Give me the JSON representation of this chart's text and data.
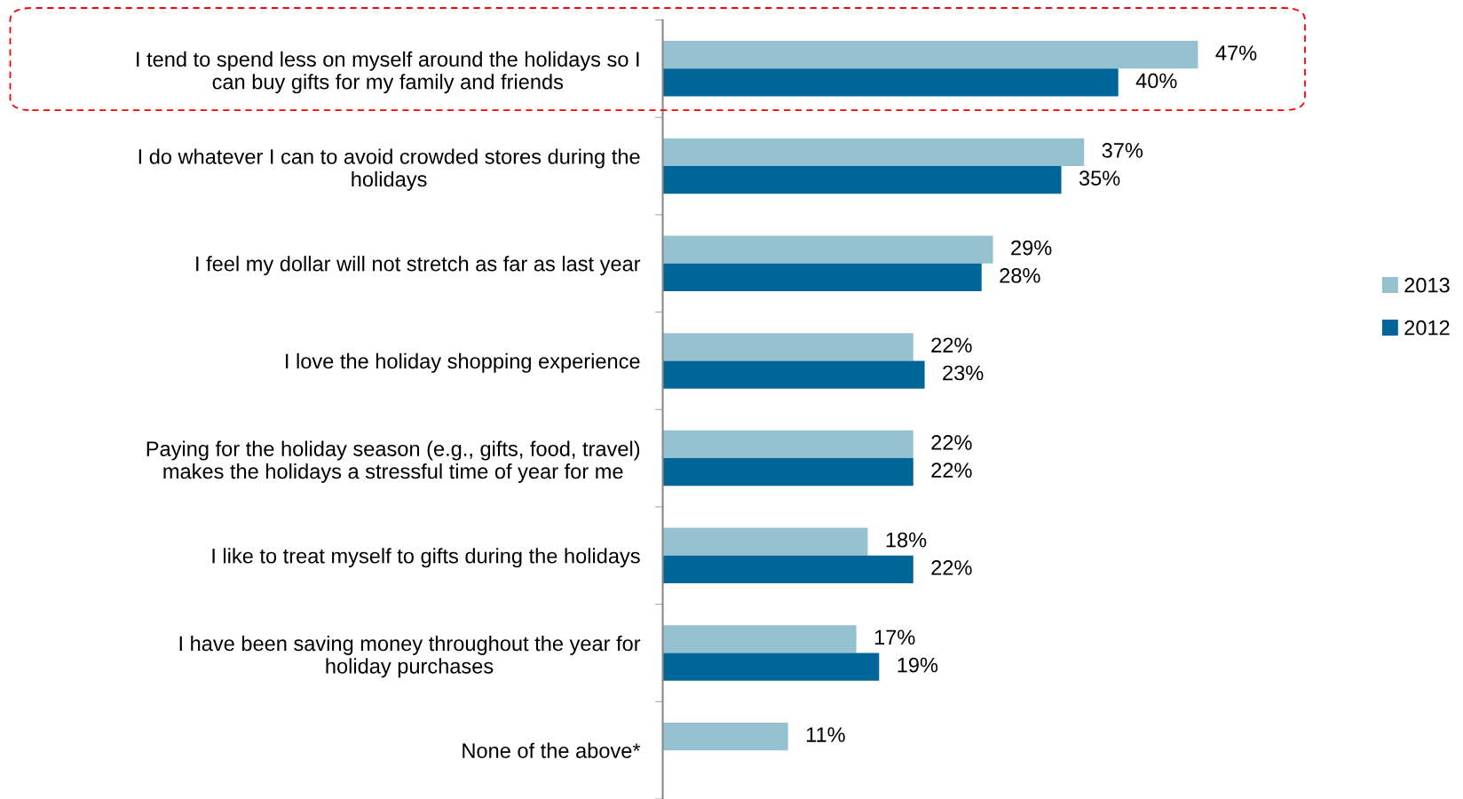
{
  "chart_data": {
    "type": "bar",
    "orientation": "horizontal",
    "categories": [
      "I tend to spend less on myself around the holidays so I\ncan buy gifts for my family and friends",
      "I do whatever I can to avoid crowded stores during the\nholidays",
      "I feel my dollar will not stretch as far as last year",
      "I love the holiday shopping experience",
      "Paying for the holiday season (e.g., gifts, food, travel)\nmakes the holidays a stressful time of year for me",
      "I like to treat myself to gifts during the holidays",
      "I have been saving money throughout the year for\nholiday purchases",
      "None of the above*"
    ],
    "series": [
      {
        "name": "2013",
        "color": "#95c1d0",
        "values": [
          47,
          37,
          29,
          22,
          22,
          18,
          17,
          11
        ],
        "value_labels": [
          "47%",
          "37%",
          "29%",
          "22%",
          "22%",
          "18%",
          "17%",
          "11%"
        ]
      },
      {
        "name": "2012",
        "color": "#006699",
        "values": [
          40,
          35,
          28,
          23,
          22,
          22,
          19,
          null
        ],
        "value_labels": [
          "40%",
          "35%",
          "28%",
          "23%",
          "22%",
          "22%",
          "19%",
          null
        ]
      }
    ],
    "legend": "right",
    "grid": false
  }
}
